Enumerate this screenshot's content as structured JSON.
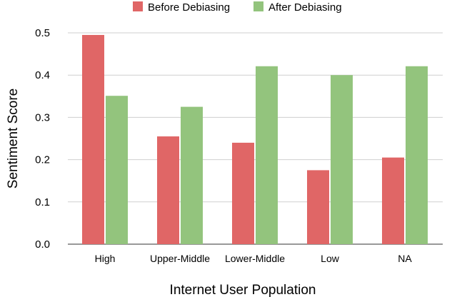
{
  "chart_data": {
    "type": "bar",
    "categories": [
      "High",
      "Upper-Middle",
      "Lower-Middle",
      "Low",
      "NA"
    ],
    "series": [
      {
        "name": "Before Debiasing",
        "values": [
          0.495,
          0.255,
          0.24,
          0.175,
          0.205
        ],
        "color": "#e06666"
      },
      {
        "name": "After Debiasing",
        "values": [
          0.351,
          0.325,
          0.421,
          0.4,
          0.421
        ],
        "color": "#93c47d"
      }
    ],
    "xlabel": "Internet User Population",
    "ylabel": "Sentiment Score",
    "ylim": [
      0,
      0.5
    ],
    "yticks": [
      "0.0",
      "0.1",
      "0.2",
      "0.3",
      "0.4",
      "0.5"
    ],
    "grid": true,
    "legend_position": "top"
  }
}
